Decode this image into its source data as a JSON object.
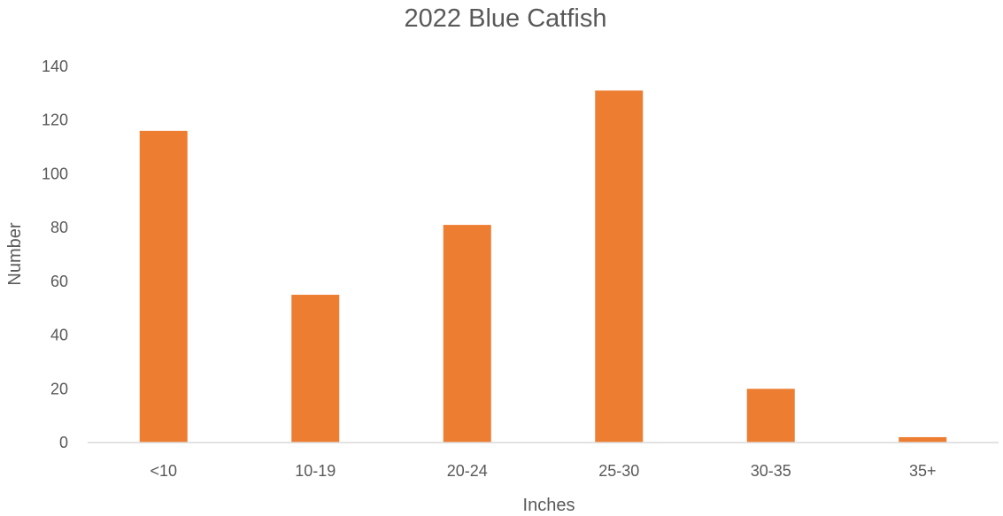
{
  "chart_data": {
    "type": "bar",
    "title": "2022 Blue Catfish",
    "xlabel": "Inches",
    "ylabel": "Number",
    "categories": [
      "<10",
      "10-19",
      "20-24",
      "25-30",
      "30-35",
      "35+"
    ],
    "values": [
      116,
      55,
      81,
      131,
      20,
      2
    ],
    "ylim": [
      0,
      140
    ],
    "yticks": [
      "0",
      "20",
      "40",
      "60",
      "80",
      "100",
      "120",
      "140"
    ],
    "grid": false,
    "legend": "none",
    "bar_color": "#ED7D31",
    "axis_color": "#D9D9D9",
    "text_color": "#595959"
  }
}
